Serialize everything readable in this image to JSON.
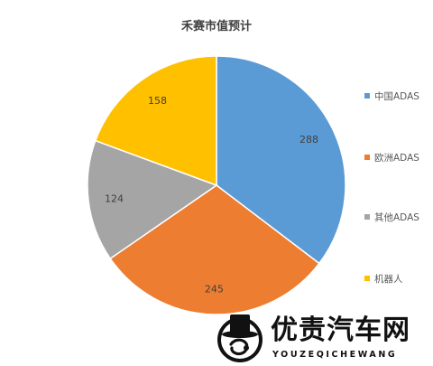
{
  "chart_data": {
    "type": "pie",
    "title": "禾赛市值预计",
    "categories": [
      "中国ADAS",
      "欧洲ADAS",
      "其他ADAS",
      "机器人"
    ],
    "values": [
      288,
      245,
      124,
      158
    ],
    "colors": [
      "#5B9BD5",
      "#ED7D31",
      "#A5A5A5",
      "#FFC000"
    ],
    "start_angle_deg": 0,
    "direction": "clockwise",
    "legend_position": "right",
    "data_labels": true
  },
  "watermark": {
    "text": "优责汽车网",
    "subtext": "YOUZEQICHEWANG",
    "logo_icon": "top-hat-logo-icon"
  }
}
